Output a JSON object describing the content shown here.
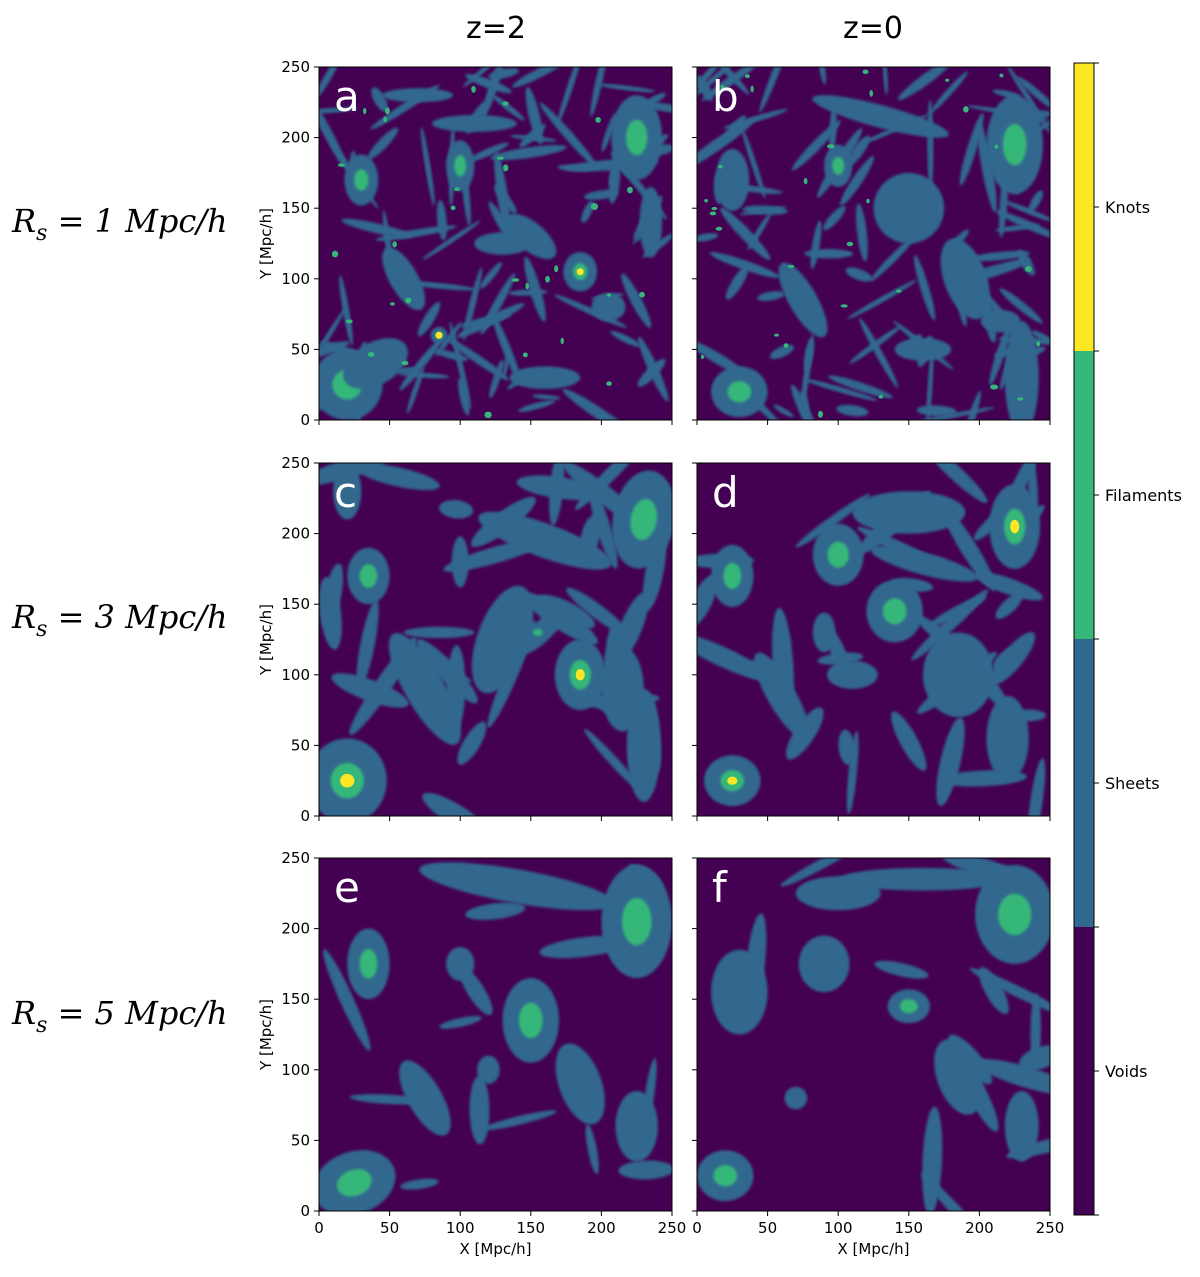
{
  "chart_data": {
    "type": "heatmap",
    "column_titles": [
      "z=2",
      "z=0"
    ],
    "row_labels": [
      {
        "base": "R",
        "sub": "s",
        "rest": " = 1 Mpc/h"
      },
      {
        "base": "R",
        "sub": "s",
        "rest": " = 3 Mpc/h"
      },
      {
        "base": "R",
        "sub": "s",
        "rest": " = 5 Mpc/h"
      }
    ],
    "xlabel": "X [Mpc/h]",
    "ylabel": "Y [Mpc/h]",
    "xlim": [
      0,
      250
    ],
    "ylim": [
      0,
      250
    ],
    "xticks": [
      0,
      50,
      100,
      150,
      200,
      250
    ],
    "yticks": [
      0,
      50,
      100,
      150,
      200,
      250
    ],
    "panels": [
      "a",
      "b",
      "c",
      "d",
      "e",
      "f"
    ],
    "colorbar": {
      "categories": [
        "Voids",
        "Sheets",
        "Filaments",
        "Knots"
      ],
      "colors": [
        "#440154",
        "#31688e",
        "#35b779",
        "#fde725"
      ]
    }
  }
}
